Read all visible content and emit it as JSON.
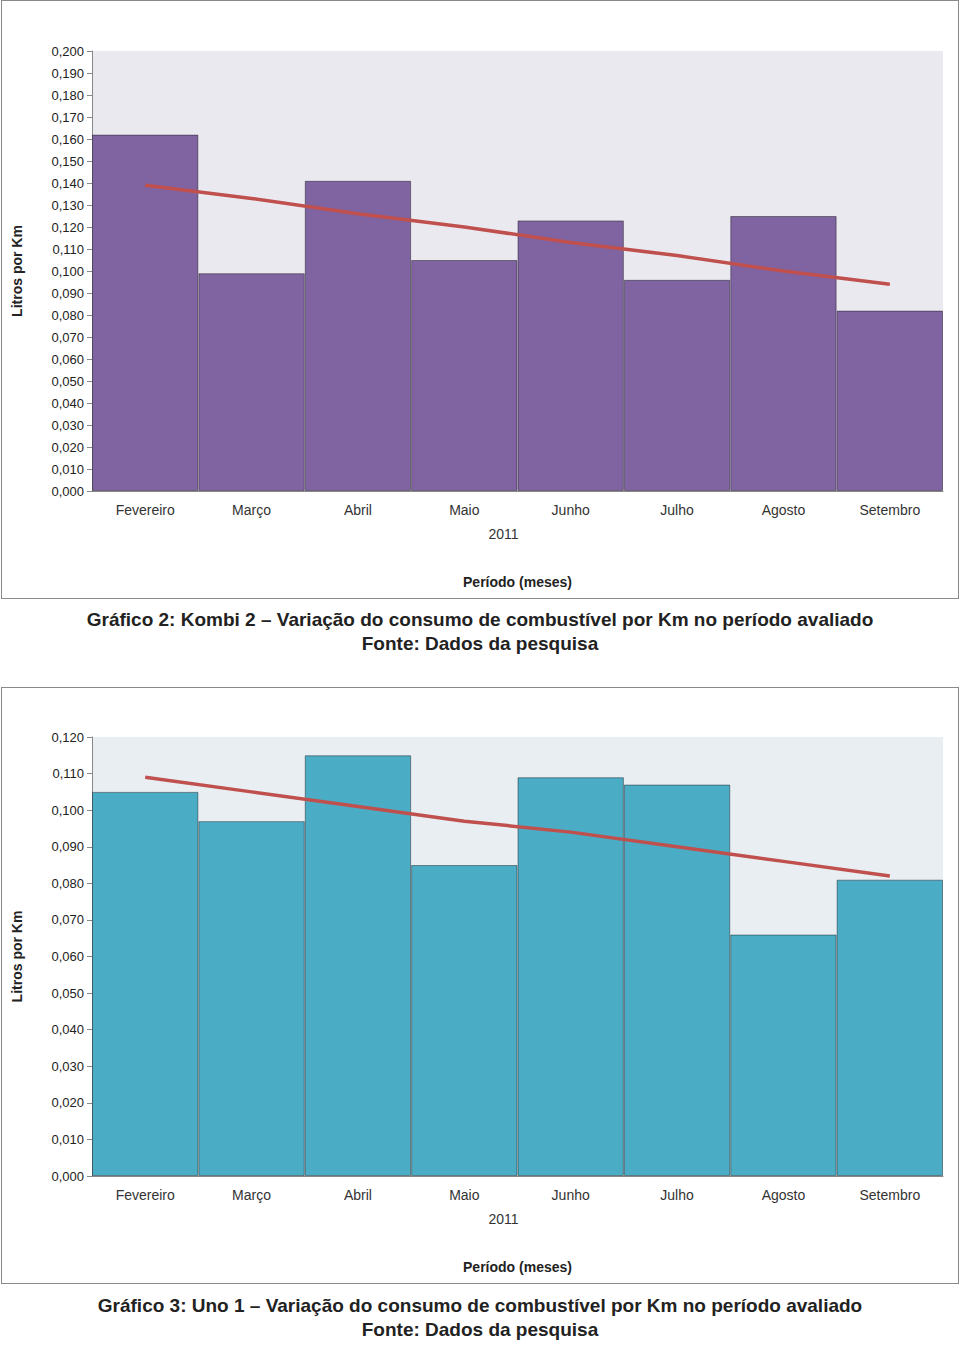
{
  "chart_data": [
    {
      "type": "bar",
      "title": "Gráfico 2: Kombi 2 – Variação do consumo de combustível por Km no período avaliado",
      "subtitle": "Fonte: Dados da pesquisa",
      "x_label": "Período (meses)",
      "y_label": "Litros por Km",
      "annotations": [
        "2011"
      ],
      "categories": [
        "Fevereiro",
        "Março",
        "Abril",
        "Maio",
        "Junho",
        "Julho",
        "Agosto",
        "Setembro"
      ],
      "series": [
        {
          "type": "bar",
          "color": "#8064a2",
          "values": [
            0.162,
            0.099,
            0.141,
            0.105,
            0.123,
            0.096,
            0.125,
            0.082
          ]
        },
        {
          "type": "line",
          "color": "#c0504d",
          "values": [
            0.139,
            0.133,
            0.126,
            0.12,
            0.113,
            0.107,
            0.1,
            0.094
          ]
        }
      ],
      "ylim": [
        0,
        0.2
      ],
      "yticks": [
        {
          "value": 0,
          "label": "0,000"
        },
        {
          "value": 0.01,
          "label": "0,010"
        },
        {
          "value": 0.02,
          "label": "0,020"
        },
        {
          "value": 0.03,
          "label": "0,030"
        },
        {
          "value": 0.04,
          "label": "0,040"
        },
        {
          "value": 0.05,
          "label": "0,050"
        },
        {
          "value": 0.06,
          "label": "0,060"
        },
        {
          "value": 0.07,
          "label": "0,070"
        },
        {
          "value": 0.08,
          "label": "0,080"
        },
        {
          "value": 0.09,
          "label": "0,090"
        },
        {
          "value": 0.1,
          "label": "0,100"
        },
        {
          "value": 0.11,
          "label": "0,110"
        },
        {
          "value": 0.12,
          "label": "0,120"
        },
        {
          "value": 0.13,
          "label": "0,130"
        },
        {
          "value": 0.14,
          "label": "0,140"
        },
        {
          "value": 0.15,
          "label": "0,150"
        },
        {
          "value": 0.16,
          "label": "0,160"
        },
        {
          "value": 0.17,
          "label": "0,170"
        },
        {
          "value": 0.18,
          "label": "0,180"
        },
        {
          "value": 0.19,
          "label": "0,190"
        },
        {
          "value": 0.2,
          "label": "0,200"
        }
      ],
      "grid": false
    },
    {
      "type": "bar",
      "title": "Gráfico 3: Uno 1 – Variação do consumo de combustível por Km no período avaliado",
      "subtitle": "Fonte: Dados da pesquisa",
      "x_label": "Período (meses)",
      "y_label": "Litros por Km",
      "annotations": [
        "2011"
      ],
      "categories": [
        "Fevereiro",
        "Março",
        "Abril",
        "Maio",
        "Junho",
        "Julho",
        "Agosto",
        "Setembro"
      ],
      "series": [
        {
          "type": "bar",
          "color": "#4bacc6",
          "values": [
            0.105,
            0.097,
            0.115,
            0.085,
            0.109,
            0.107,
            0.066,
            0.081
          ]
        },
        {
          "type": "line",
          "color": "#c0504d",
          "values": [
            0.109,
            0.105,
            0.101,
            0.097,
            0.094,
            0.09,
            0.086,
            0.082
          ]
        }
      ],
      "ylim": [
        0,
        0.12
      ],
      "yticks": [
        {
          "value": 0,
          "label": "0,000"
        },
        {
          "value": 0.01,
          "label": "0,010"
        },
        {
          "value": 0.02,
          "label": "0,020"
        },
        {
          "value": 0.03,
          "label": "0,030"
        },
        {
          "value": 0.04,
          "label": "0,040"
        },
        {
          "value": 0.05,
          "label": "0,050"
        },
        {
          "value": 0.06,
          "label": "0,060"
        },
        {
          "value": 0.07,
          "label": "0,070"
        },
        {
          "value": 0.08,
          "label": "0,080"
        },
        {
          "value": 0.09,
          "label": "0,090"
        },
        {
          "value": 0.1,
          "label": "0,100"
        },
        {
          "value": 0.11,
          "label": "0,110"
        },
        {
          "value": 0.12,
          "label": "0,120"
        }
      ],
      "grid": false
    }
  ]
}
